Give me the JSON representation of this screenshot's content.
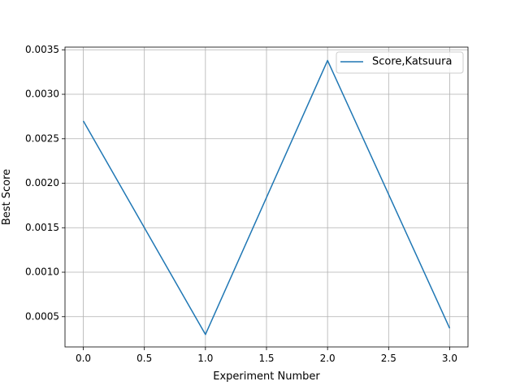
{
  "colors": {
    "series": "#1f77b4",
    "grid": "#b0b0b0",
    "axes": "#000000",
    "background": "#ffffff",
    "legend_border": "#cccccc"
  },
  "chart_data": {
    "type": "line",
    "title": "",
    "xlabel": "Experiment Number",
    "ylabel": "Best Score",
    "xlim": [
      -0.15,
      3.15
    ],
    "ylim": [
      0.00016,
      0.00353
    ],
    "grid": true,
    "legend_position": "top-right",
    "x_ticks": [
      0.0,
      0.5,
      1.0,
      1.5,
      2.0,
      2.5,
      3.0
    ],
    "x_tick_labels": [
      "0.0",
      "0.5",
      "1.0",
      "1.5",
      "2.0",
      "2.5",
      "3.0"
    ],
    "y_ticks": [
      0.0005,
      0.001,
      0.0015,
      0.002,
      0.0025,
      0.003,
      0.0035
    ],
    "y_tick_labels": [
      "0.0005",
      "0.0010",
      "0.0015",
      "0.0020",
      "0.0025",
      "0.0030",
      "0.0035"
    ],
    "series": [
      {
        "name": "Score,Katsuura",
        "x": [
          0,
          1,
          2,
          3
        ],
        "values": [
          0.0027,
          0.0003,
          0.00338,
          0.00037
        ]
      }
    ]
  }
}
